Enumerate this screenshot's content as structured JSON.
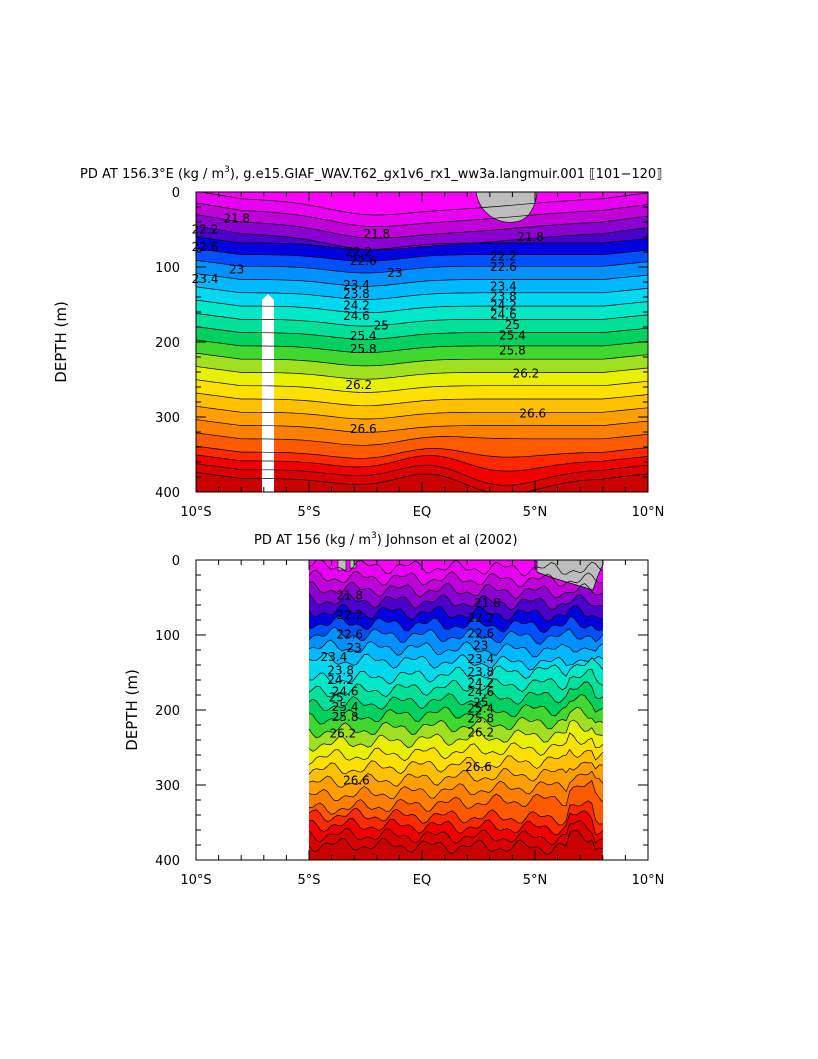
{
  "chart_data": [
    {
      "type": "contour",
      "title_main": "PD AT 156.3°E (kg / m",
      "title_sup": "3",
      "title_rest": "), g.e15.GIAF_WAV.T62_gx1v6_rx1_ww3a.langmuir.001  ⟦101−120⟧",
      "ylabel": "DEPTH (m)",
      "xlabel": "",
      "xlim": [
        -10,
        10
      ],
      "ylim": [
        400,
        0
      ],
      "xticks": [
        -10,
        -5,
        0,
        5,
        10
      ],
      "xtick_labels": [
        "10°S",
        "5°S",
        "EQ",
        "5°N",
        "10°N"
      ],
      "yticks": [
        0,
        100,
        200,
        300,
        400
      ],
      "ytick_labels": [
        "0",
        "100",
        "200",
        "300",
        "400"
      ],
      "data_xrange": [
        -10,
        10
      ],
      "levels": [
        21.8,
        22.2,
        22.6,
        23,
        23.4,
        23.8,
        24.2,
        24.6,
        25,
        25.4,
        25.8,
        26.2,
        26.6
      ],
      "contour_labels": [
        "21.8",
        "21.8",
        "21.8",
        "22.2",
        "22.2",
        "22.2",
        "22.6",
        "22.6",
        "22.6",
        "23",
        "23",
        "23.4",
        "23.4",
        "23.4",
        "23.8",
        "23.8",
        "24.2",
        "24.2",
        "24.6",
        "24.6",
        "25",
        "25",
        "25.4",
        "25.4",
        "25.8",
        "25.8",
        "26.2",
        "26.2",
        "26.6",
        "26.6"
      ],
      "missing_regions": [
        "surface near 3°N",
        "column near 6°S below 150 m"
      ]
    },
    {
      "type": "contour",
      "title_main": "PD AT 156 (kg / m",
      "title_sup": "3",
      "title_rest": ") Johnson et al (2002)",
      "ylabel": "DEPTH (m)",
      "xlabel": "",
      "xlim": [
        -10,
        10
      ],
      "ylim": [
        400,
        0
      ],
      "xticks": [
        -10,
        -5,
        0,
        5,
        10
      ],
      "xtick_labels": [
        "10°S",
        "5°S",
        "EQ",
        "5°N",
        "10°N"
      ],
      "yticks": [
        0,
        100,
        200,
        300,
        400
      ],
      "ytick_labels": [
        "0",
        "100",
        "200",
        "300",
        "400"
      ],
      "data_xrange": [
        -5,
        8
      ],
      "levels": [
        21.8,
        22.2,
        22.6,
        23,
        23.4,
        23.8,
        24.2,
        24.6,
        25,
        25.4,
        25.8,
        26.2,
        26.6
      ],
      "contour_labels": [
        "21.8",
        "21.8",
        "22.2",
        "22.2",
        "22.6",
        "22.6",
        "23",
        "23",
        "23.4",
        "23.4",
        "23.8",
        "23.8",
        "24.2",
        "24.2",
        "24.6",
        "24.6",
        "25",
        "25",
        "25.4",
        "25.4",
        "25.8",
        "25.8",
        "26.2",
        "26.2",
        "26.6",
        "26.6"
      ],
      "missing_regions": [
        "surface near 6–8°N"
      ]
    }
  ],
  "colors": {
    "missing": "#bdbdbd",
    "bands": [
      "#ff00ff",
      "#e800f2",
      "#c000d8",
      "#8a00d0",
      "#4a00c8",
      "#0000e0",
      "#0050ff",
      "#0090ff",
      "#00b8ff",
      "#00d8f0",
      "#00e8c8",
      "#00e098",
      "#00d060",
      "#40d830",
      "#a0e020",
      "#e8f000",
      "#ffe000",
      "#ffc000",
      "#ffa000",
      "#ff8000",
      "#ff5a00",
      "#ff2a00",
      "#f20000",
      "#d80000",
      "#c80000"
    ]
  }
}
